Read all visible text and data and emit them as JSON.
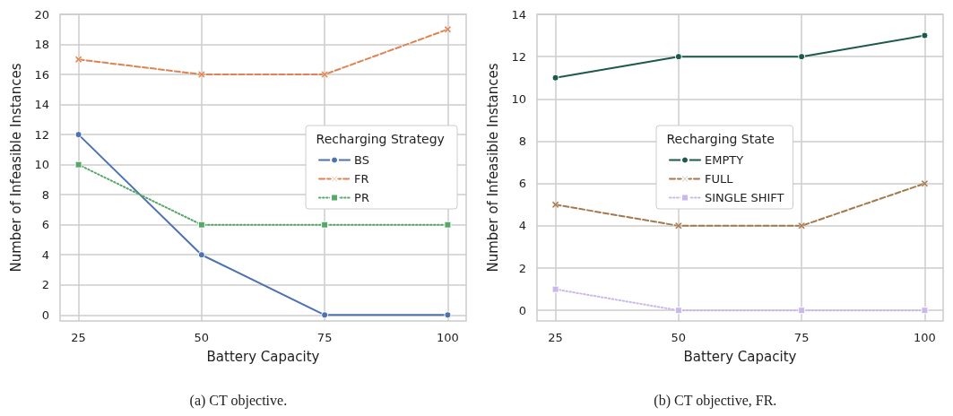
{
  "chart_data": [
    {
      "type": "line",
      "xlabel": "Battery Capacity",
      "ylabel": "Number of Infeasible Instances",
      "legend_title": "Recharging Strategy",
      "annotations": [
        "(a) CT objective."
      ],
      "x": [
        25,
        50,
        75,
        100
      ],
      "xlim": [
        21.25,
        103.75
      ],
      "xticks": [
        25,
        50,
        75,
        100
      ],
      "ylim": [
        -0.4,
        20
      ],
      "yticks": [
        0,
        2,
        4,
        6,
        8,
        10,
        12,
        14,
        16,
        18,
        20
      ],
      "grid": true,
      "legend": "right",
      "series": [
        {
          "name": "BS",
          "color": "#4c72b0",
          "marker": "circle",
          "line_style": "solid",
          "values": [
            12,
            4,
            0,
            0
          ]
        },
        {
          "name": "FR",
          "color": "#dd8452",
          "marker": "cross",
          "line_style": "dashed",
          "values": [
            17,
            16,
            16,
            19
          ]
        },
        {
          "name": "PR",
          "color": "#55a868",
          "marker": "square",
          "line_style": "dotted",
          "values": [
            10,
            6,
            6,
            6
          ]
        }
      ]
    },
    {
      "type": "line",
      "xlabel": "Battery Capacity",
      "ylabel": "Number of Infeasible Instances",
      "legend_title": "Recharging State",
      "annotations": [
        "(b) CT objective, FR."
      ],
      "x": [
        25,
        50,
        75,
        100
      ],
      "xlim": [
        21.25,
        103.75
      ],
      "xticks": [
        25,
        50,
        75,
        100
      ],
      "ylim": [
        -0.5,
        14
      ],
      "yticks": [
        0,
        2,
        4,
        6,
        8,
        10,
        12,
        14
      ],
      "grid": true,
      "legend": "center",
      "series": [
        {
          "name": "EMPTY",
          "color": "#1d5a4c",
          "marker": "circle",
          "line_style": "solid",
          "values": [
            11,
            12,
            12,
            13
          ]
        },
        {
          "name": "FULL",
          "color": "#a5794b",
          "marker": "cross",
          "line_style": "dashed",
          "values": [
            5,
            4,
            4,
            6
          ]
        },
        {
          "name": "SINGLE SHIFT",
          "color": "#c9b8ee",
          "marker": "square",
          "line_style": "dotted",
          "values": [
            1,
            0,
            0,
            0
          ]
        }
      ]
    }
  ]
}
